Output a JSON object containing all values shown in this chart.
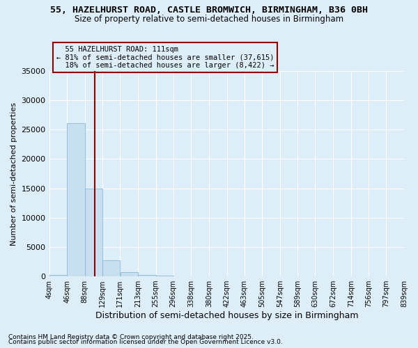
{
  "title": "55, HAZELHURST ROAD, CASTLE BROMWICH, BIRMINGHAM, B36 0BH",
  "subtitle": "Size of property relative to semi-detached houses in Birmingham",
  "xlabel": "Distribution of semi-detached houses by size in Birmingham",
  "ylabel": "Number of semi-detached properties",
  "property_size": 111,
  "property_label": "55 HAZELHURST ROAD: 111sqm",
  "pct_smaller": 81,
  "pct_larger": 18,
  "count_smaller": 37615,
  "count_larger": 8422,
  "bin_edges": [
    4,
    46,
    88,
    129,
    171,
    213,
    255,
    296,
    338,
    380,
    422,
    463,
    505,
    547,
    589,
    630,
    672,
    714,
    756,
    797,
    839
  ],
  "bar_heights": [
    300,
    26100,
    15000,
    2700,
    700,
    300,
    100,
    50,
    30,
    20,
    10,
    5,
    4,
    3,
    2,
    2,
    1,
    1,
    1,
    0
  ],
  "bar_color": "#c8dff0",
  "bar_edge_color": "#7ab0d4",
  "vline_color": "#8b0000",
  "vline_x": 111,
  "annotation_box_color": "#8b0000",
  "background_color": "#ddeef8",
  "ylim": [
    0,
    35000
  ],
  "yticks": [
    0,
    5000,
    10000,
    15000,
    20000,
    25000,
    30000,
    35000
  ],
  "footnote1": "Contains HM Land Registry data © Crown copyright and database right 2025.",
  "footnote2": "Contains public sector information licensed under the Open Government Licence v3.0."
}
